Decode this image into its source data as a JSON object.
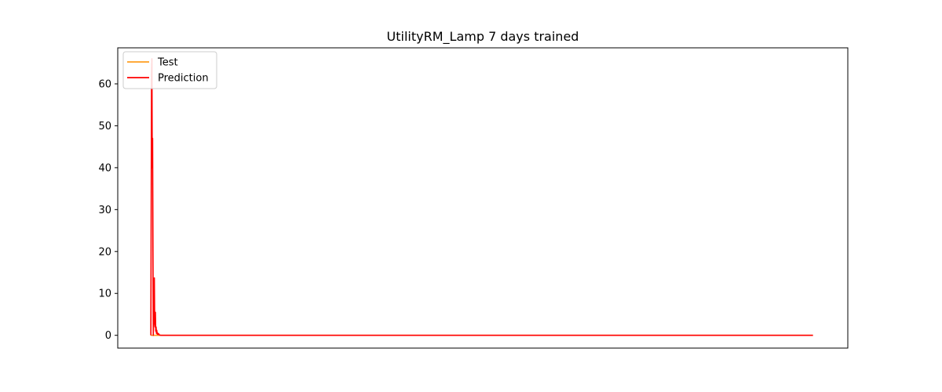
{
  "chart_data": {
    "type": "line",
    "title": "UtilityRM_Lamp 7 days trained",
    "xlabel": "",
    "ylabel": "",
    "x_ticks_visible": false,
    "y_ticks": [
      0,
      10,
      20,
      30,
      40,
      50,
      60
    ],
    "y_tick_labels": [
      "0",
      "10",
      "20",
      "30",
      "40",
      "50",
      "60"
    ],
    "ylim": [
      -3.05,
      68.6
    ],
    "xlim": [
      -47.5,
      1000
    ],
    "grid": false,
    "legend_position": "upper-left",
    "series": [
      {
        "name": "Test",
        "color": "#ff9e1f",
        "x": [
          0,
          950
        ],
        "y": [
          0,
          0
        ]
      },
      {
        "name": "Prediction",
        "color": "#ff0000",
        "x": [
          0,
          1,
          1.5,
          2,
          2.5,
          3,
          3.5,
          4,
          4.5,
          5,
          5.5,
          6,
          6.5,
          7,
          7.5,
          8,
          8.5,
          9,
          9.5,
          10,
          11,
          12,
          13,
          14,
          15,
          950
        ],
        "y": [
          0,
          62,
          66,
          40,
          47,
          20,
          0,
          4,
          11,
          13.7,
          3,
          2,
          5.5,
          1,
          2,
          0.5,
          1.2,
          0.3,
          0.6,
          0.2,
          0.4,
          0.1,
          0.05,
          0.02,
          0,
          0
        ]
      }
    ]
  }
}
